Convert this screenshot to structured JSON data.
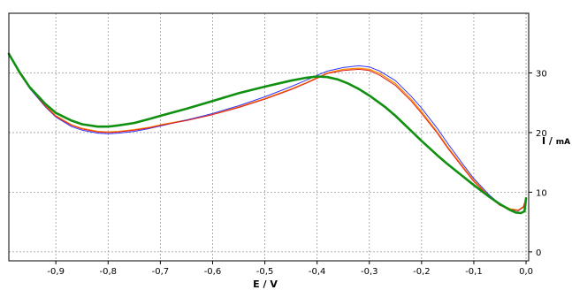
{
  "chart_data": {
    "type": "line",
    "xlabel": "E / V",
    "ylabel_main": "I / ",
    "ylabel_unit": "mA",
    "xlim": [
      -0.99,
      0.005
    ],
    "ylim": [
      -1.5,
      40
    ],
    "x_ticks": [
      -0.9,
      -0.8,
      -0.7,
      -0.6,
      -0.5,
      -0.4,
      -0.3,
      -0.2,
      -0.1,
      0
    ],
    "x_tick_labels": [
      "-0,9",
      "-0,8",
      "-0,7",
      "-0,6",
      "-0,5",
      "-0,4",
      "-0,3",
      "-0,2",
      "-0,1",
      "0,0"
    ],
    "y_ticks": [
      0,
      10,
      20,
      30
    ],
    "y_tick_labels": [
      "0",
      "10",
      "20",
      "30"
    ],
    "grid": true,
    "colors": {
      "grid": "#9a9a9a",
      "axis": "#000000",
      "series_orange": "#ff8c00",
      "series_blue": "#3535ff",
      "series_red": "#e02020",
      "series_green": "#109010"
    },
    "series": [
      {
        "color": "#ff8c00",
        "width": 1.3,
        "x": [
          -0.99,
          -0.97,
          -0.95,
          -0.92,
          -0.9,
          -0.87,
          -0.85,
          -0.82,
          -0.8,
          -0.78,
          -0.75,
          -0.72,
          -0.7,
          -0.65,
          -0.6,
          -0.55,
          -0.5,
          -0.45,
          -0.42,
          -0.4,
          -0.38,
          -0.35,
          -0.32,
          -0.3,
          -0.28,
          -0.25,
          -0.22,
          -0.2,
          -0.17,
          -0.15,
          -0.12,
          -0.1,
          -0.07,
          -0.05,
          -0.03,
          -0.015,
          -0.005,
          0.0
        ],
        "y": [
          33.2,
          30.0,
          27.5,
          24.5,
          22.8,
          21.3,
          20.7,
          20.2,
          20.1,
          20.2,
          20.5,
          20.9,
          21.3,
          22.1,
          23.1,
          24.3,
          25.7,
          27.3,
          28.4,
          29.2,
          30.0,
          30.6,
          30.8,
          30.6,
          29.9,
          28.2,
          25.6,
          23.5,
          20.1,
          17.6,
          14.2,
          12.0,
          9.4,
          8.0,
          7.2,
          7.0,
          7.6,
          9.0
        ]
      },
      {
        "color": "#3535ff",
        "width": 1.0,
        "x": [
          -0.99,
          -0.97,
          -0.95,
          -0.92,
          -0.9,
          -0.87,
          -0.85,
          -0.82,
          -0.8,
          -0.78,
          -0.75,
          -0.72,
          -0.7,
          -0.65,
          -0.6,
          -0.55,
          -0.5,
          -0.45,
          -0.42,
          -0.4,
          -0.38,
          -0.35,
          -0.32,
          -0.3,
          -0.28,
          -0.25,
          -0.22,
          -0.2,
          -0.17,
          -0.15,
          -0.12,
          -0.1,
          -0.07,
          -0.05,
          -0.03,
          -0.015,
          -0.005,
          0.0
        ],
        "y": [
          33.2,
          30.0,
          27.4,
          24.3,
          22.6,
          21.0,
          20.4,
          19.9,
          19.8,
          19.9,
          20.2,
          20.7,
          21.1,
          22.1,
          23.2,
          24.5,
          26.0,
          27.7,
          28.8,
          29.6,
          30.3,
          30.9,
          31.2,
          31.0,
          30.3,
          28.7,
          26.1,
          24.1,
          20.7,
          18.2,
          14.6,
          12.3,
          9.5,
          8.0,
          7.1,
          6.9,
          7.5,
          9.0
        ]
      },
      {
        "color": "#e02020",
        "width": 1.0,
        "x": [
          -0.99,
          -0.97,
          -0.95,
          -0.92,
          -0.9,
          -0.87,
          -0.85,
          -0.82,
          -0.8,
          -0.78,
          -0.75,
          -0.72,
          -0.7,
          -0.65,
          -0.6,
          -0.55,
          -0.5,
          -0.45,
          -0.42,
          -0.4,
          -0.38,
          -0.35,
          -0.32,
          -0.3,
          -0.28,
          -0.25,
          -0.22,
          -0.2,
          -0.17,
          -0.15,
          -0.12,
          -0.1,
          -0.07,
          -0.05,
          -0.03,
          -0.015,
          -0.005,
          0.0
        ],
        "y": [
          33.2,
          30.0,
          27.5,
          24.4,
          22.7,
          21.2,
          20.6,
          20.1,
          20.0,
          20.1,
          20.4,
          20.8,
          21.2,
          22.0,
          23.0,
          24.2,
          25.6,
          27.2,
          28.3,
          29.1,
          29.9,
          30.4,
          30.6,
          30.4,
          29.6,
          27.9,
          25.3,
          23.2,
          19.9,
          17.4,
          14.0,
          11.8,
          9.2,
          7.8,
          7.1,
          6.9,
          7.5,
          9.0
        ]
      },
      {
        "color": "#109010",
        "width": 2.6,
        "x": [
          -0.99,
          -0.97,
          -0.95,
          -0.92,
          -0.9,
          -0.87,
          -0.85,
          -0.82,
          -0.8,
          -0.78,
          -0.75,
          -0.72,
          -0.7,
          -0.65,
          -0.6,
          -0.55,
          -0.5,
          -0.45,
          -0.42,
          -0.4,
          -0.38,
          -0.36,
          -0.34,
          -0.32,
          -0.3,
          -0.27,
          -0.25,
          -0.22,
          -0.2,
          -0.17,
          -0.15,
          -0.12,
          -0.1,
          -0.07,
          -0.05,
          -0.03,
          -0.02,
          -0.01,
          -0.003,
          0.0
        ],
        "y": [
          33.2,
          30.2,
          27.6,
          24.8,
          23.3,
          22.0,
          21.4,
          21.0,
          21.0,
          21.2,
          21.6,
          22.3,
          22.8,
          24.0,
          25.3,
          26.6,
          27.7,
          28.7,
          29.2,
          29.4,
          29.3,
          28.9,
          28.2,
          27.3,
          26.2,
          24.3,
          22.8,
          20.3,
          18.6,
          16.2,
          14.7,
          12.6,
          11.2,
          9.2,
          8.0,
          7.0,
          6.6,
          6.5,
          6.8,
          9.0
        ]
      }
    ]
  }
}
